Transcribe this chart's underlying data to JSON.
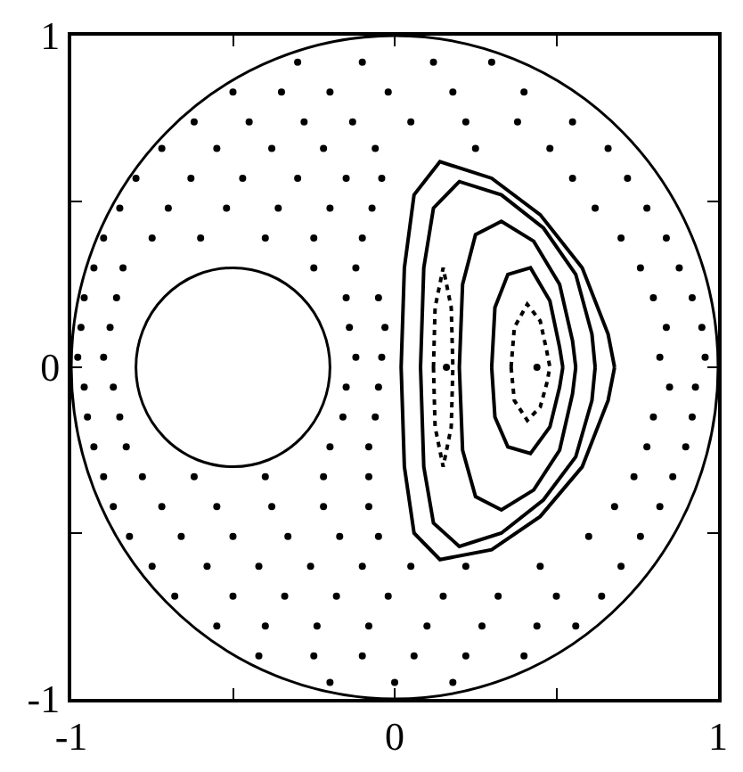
{
  "chart_data": {
    "type": "scatter",
    "xlim": [
      -1,
      1
    ],
    "ylim": [
      -1,
      1
    ],
    "xticks": [
      -1,
      {
        "value": -0.5,
        "label": null
      },
      0,
      {
        "value": 0.5,
        "label": null
      },
      1
    ],
    "yticks": [
      -1,
      {
        "value": -0.5,
        "label": null
      },
      0,
      {
        "value": 0.5,
        "label": null
      },
      1
    ],
    "series": [
      {
        "type": "line",
        "color": "#000000",
        "marker": "none",
        "line_style": "solid",
        "x": [
          0.02,
          0.03,
          0.06,
          0.14,
          0.3,
          0.45,
          0.58,
          0.66,
          0.68,
          null,
          0.02,
          0.03,
          0.06,
          0.14,
          0.3,
          0.45,
          0.58,
          0.66,
          0.68
        ],
        "values": [
          0,
          0.3,
          0.52,
          0.62,
          0.57,
          0.46,
          0.3,
          0.1,
          0,
          null,
          0,
          -0.3,
          -0.5,
          -0.58,
          -0.55,
          -0.45,
          -0.3,
          -0.1,
          0
        ]
      },
      {
        "type": "line",
        "color": "#000000",
        "marker": "none",
        "line_style": "solid",
        "x": [
          0.08,
          0.09,
          0.12,
          0.2,
          0.33,
          0.46,
          0.56,
          0.61,
          0.62,
          null,
          0.08,
          0.09,
          0.12,
          0.2,
          0.33,
          0.46,
          0.56,
          0.61,
          0.62
        ],
        "values": [
          0,
          0.3,
          0.48,
          0.56,
          0.52,
          0.42,
          0.28,
          0.1,
          0,
          null,
          0,
          -0.3,
          -0.47,
          -0.54,
          -0.5,
          -0.4,
          -0.27,
          -0.1,
          0
        ]
      },
      {
        "type": "line",
        "color": "#000000",
        "marker": "none",
        "line_style": "solid",
        "x": [
          0.2,
          0.21,
          0.25,
          0.33,
          0.43,
          0.51,
          0.55,
          0.56,
          null,
          0.2,
          0.21,
          0.25,
          0.33,
          0.43,
          0.51,
          0.55,
          0.56
        ],
        "values": [
          0,
          0.25,
          0.4,
          0.44,
          0.38,
          0.25,
          0.08,
          0,
          null,
          0,
          -0.25,
          -0.39,
          -0.43,
          -0.37,
          -0.25,
          -0.08,
          0
        ]
      },
      {
        "type": "line",
        "color": "#000000",
        "marker": "none",
        "line_style": "solid",
        "x": [
          0.3,
          0.31,
          0.35,
          0.42,
          0.48,
          0.51,
          0.52,
          null,
          0.3,
          0.31,
          0.35,
          0.42,
          0.48,
          0.51,
          0.52
        ],
        "values": [
          0,
          0.18,
          0.28,
          0.3,
          0.2,
          0.06,
          0,
          null,
          0,
          -0.15,
          -0.24,
          -0.26,
          -0.18,
          -0.06,
          0
        ]
      },
      {
        "type": "line",
        "color": "#000000",
        "marker": "none",
        "line_style": "dotted",
        "x": [
          0.36,
          0.37,
          0.41,
          0.45,
          0.47,
          0.48,
          null,
          0.36,
          0.37,
          0.41,
          0.45,
          0.47,
          0.48
        ],
        "values": [
          0,
          0.12,
          0.19,
          0.14,
          0.05,
          0,
          null,
          0,
          -0.1,
          -0.16,
          -0.12,
          -0.05,
          0
        ]
      },
      {
        "type": "line",
        "color": "#000000",
        "marker": "none",
        "line_style": "dotted",
        "x": [
          0.12,
          0.125,
          0.15,
          0.175,
          0.18,
          null,
          0.12,
          0.125,
          0.15,
          0.175,
          0.18
        ],
        "values": [
          0,
          0.18,
          0.3,
          0.18,
          0,
          null,
          0,
          -0.18,
          -0.3,
          -0.18,
          0
        ]
      },
      {
        "type": "scatter",
        "color": "#000000",
        "marker": "circle",
        "x": [
          0.16
        ],
        "values": [
          0
        ]
      },
      {
        "type": "scatter",
        "color": "#000000",
        "marker": "circle",
        "x": [
          0.44
        ],
        "values": [
          0
        ]
      },
      {
        "type": "scatter",
        "color": "#000000",
        "marker": "circle",
        "x": [
          -0.3,
          -0.1,
          0.12,
          0.3,
          -0.5,
          -0.35,
          -0.2,
          -0.02,
          0.18,
          0.4,
          -0.62,
          -0.45,
          -0.28,
          -0.13,
          0.05,
          0.22,
          0.38,
          0.55,
          -0.72,
          -0.55,
          -0.38,
          -0.22,
          -0.06,
          0.25,
          0.48,
          0.66,
          -0.8,
          -0.63,
          -0.47,
          -0.3,
          -0.15,
          -0.04,
          0.55,
          0.72,
          -0.85,
          -0.7,
          -0.52,
          -0.36,
          -0.2,
          -0.07,
          0.62,
          0.78,
          -0.9,
          -0.75,
          -0.6,
          -0.4,
          -0.25,
          -0.1,
          0.7,
          0.84,
          -0.93,
          -0.84,
          -0.25,
          -0.12,
          0.76,
          0.88,
          -0.96,
          -0.86,
          -0.15,
          -0.05,
          0.8,
          0.92,
          -0.97,
          -0.88,
          -0.14,
          -0.03,
          0.84,
          0.95,
          -0.98,
          -0.9,
          -0.12,
          -0.04,
          0.82,
          0.96,
          -0.96,
          -0.87,
          -0.15,
          -0.05,
          0.85,
          0.93,
          -0.95,
          -0.85,
          -0.16,
          -0.06,
          0.8,
          0.92,
          -0.93,
          -0.83,
          -0.2,
          -0.08,
          0.78,
          0.9,
          -0.9,
          -0.78,
          -0.62,
          -0.4,
          -0.22,
          -0.08,
          0.74,
          0.86,
          -0.87,
          -0.72,
          -0.55,
          -0.38,
          -0.22,
          -0.08,
          0.68,
          0.82,
          -0.82,
          -0.66,
          -0.5,
          -0.33,
          -0.17,
          -0.05,
          0.6,
          0.76,
          -0.75,
          -0.58,
          -0.42,
          -0.26,
          -0.1,
          0.05,
          0.22,
          0.45,
          0.7,
          -0.68,
          -0.5,
          -0.34,
          -0.18,
          -0.02,
          0.15,
          0.32,
          0.5,
          0.64,
          -0.55,
          -0.4,
          -0.24,
          -0.08,
          0.1,
          0.27,
          0.44,
          0.56,
          -0.42,
          -0.25,
          -0.1,
          0.06,
          0.22,
          0.4,
          -0.2,
          0,
          0.18
        ],
        "values": [
          0.92,
          0.92,
          0.92,
          0.92,
          0.83,
          0.83,
          0.83,
          0.83,
          0.83,
          0.83,
          0.74,
          0.74,
          0.74,
          0.74,
          0.74,
          0.74,
          0.74,
          0.74,
          0.66,
          0.66,
          0.66,
          0.66,
          0.66,
          0.66,
          0.66,
          0.66,
          0.57,
          0.57,
          0.57,
          0.57,
          0.57,
          0.57,
          0.57,
          0.57,
          0.48,
          0.48,
          0.48,
          0.48,
          0.48,
          0.48,
          0.48,
          0.48,
          0.39,
          0.39,
          0.39,
          0.39,
          0.39,
          0.39,
          0.39,
          0.39,
          0.3,
          0.3,
          0.3,
          0.3,
          0.3,
          0.3,
          0.21,
          0.21,
          0.21,
          0.21,
          0.21,
          0.21,
          0.12,
          0.12,
          0.12,
          0.12,
          0.12,
          0.12,
          0.03,
          0.03,
          0.03,
          0.03,
          0.03,
          0.03,
          -0.06,
          -0.06,
          -0.06,
          -0.06,
          -0.06,
          -0.06,
          -0.15,
          -0.15,
          -0.15,
          -0.15,
          -0.15,
          -0.15,
          -0.24,
          -0.24,
          -0.24,
          -0.24,
          -0.24,
          -0.24,
          -0.33,
          -0.33,
          -0.33,
          -0.33,
          -0.33,
          -0.33,
          -0.33,
          -0.33,
          -0.42,
          -0.42,
          -0.42,
          -0.42,
          -0.42,
          -0.42,
          -0.42,
          -0.42,
          -0.51,
          -0.51,
          -0.51,
          -0.51,
          -0.51,
          -0.51,
          -0.51,
          -0.51,
          -0.6,
          -0.6,
          -0.6,
          -0.6,
          -0.6,
          -0.6,
          -0.6,
          -0.6,
          -0.6,
          -0.69,
          -0.69,
          -0.69,
          -0.69,
          -0.69,
          -0.69,
          -0.69,
          -0.69,
          -0.69,
          -0.78,
          -0.78,
          -0.78,
          -0.78,
          -0.78,
          -0.78,
          -0.78,
          -0.78,
          -0.87,
          -0.87,
          -0.87,
          -0.87,
          -0.87,
          -0.87,
          -0.95,
          -0.95,
          -0.95
        ]
      }
    ]
  }
}
